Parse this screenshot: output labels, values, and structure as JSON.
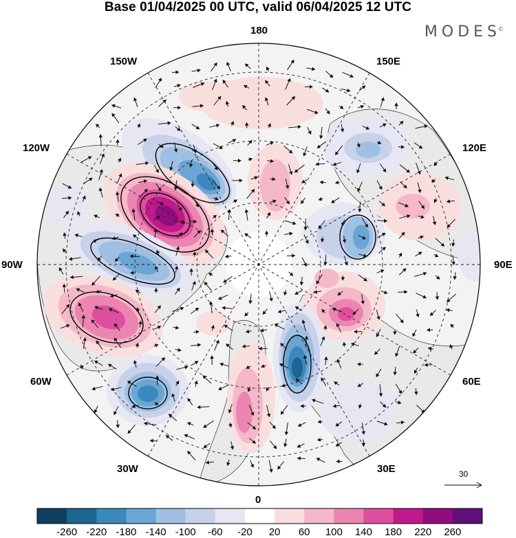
{
  "title": "Base 01/04/2025 00 UTC, valid 06/04/2025 12 UTC",
  "brand": "MODES",
  "brand_mark": "©",
  "longitude_labels": {
    "top": "180",
    "bottom": "0",
    "left": "90W",
    "right": "90E",
    "upper_left_1": "150W",
    "upper_left_2": "120W",
    "upper_right_1": "150E",
    "upper_right_2": "120E",
    "lower_left_1": "60W",
    "lower_left_2": "30W",
    "lower_right_1": "60E",
    "lower_right_2": "30E"
  },
  "reference_vector": {
    "label": "30",
    "icon": "arrow-right-icon"
  },
  "colorbar": {
    "labels": [
      "-260",
      "-220",
      "-180",
      "-140",
      "-100",
      "-60",
      "-20",
      "20",
      "60",
      "100",
      "140",
      "180",
      "220",
      "260"
    ],
    "colors": [
      "#0f3f5f",
      "#1c6690",
      "#3b88bd",
      "#6aa5d4",
      "#9fc0e2",
      "#c7d2ea",
      "#e7e7f3",
      "#ffffff",
      "#f9dede",
      "#f4b8c8",
      "#ec85b1",
      "#de4f9f",
      "#c0198b",
      "#8f0d7d",
      "#5e0f7a"
    ]
  },
  "colors": {
    "land_fill": "#eeeeee",
    "ocean_fill": "#ffffff",
    "negative_anomaly": "#1c6690",
    "positive_anomaly": "#c0198b"
  }
}
